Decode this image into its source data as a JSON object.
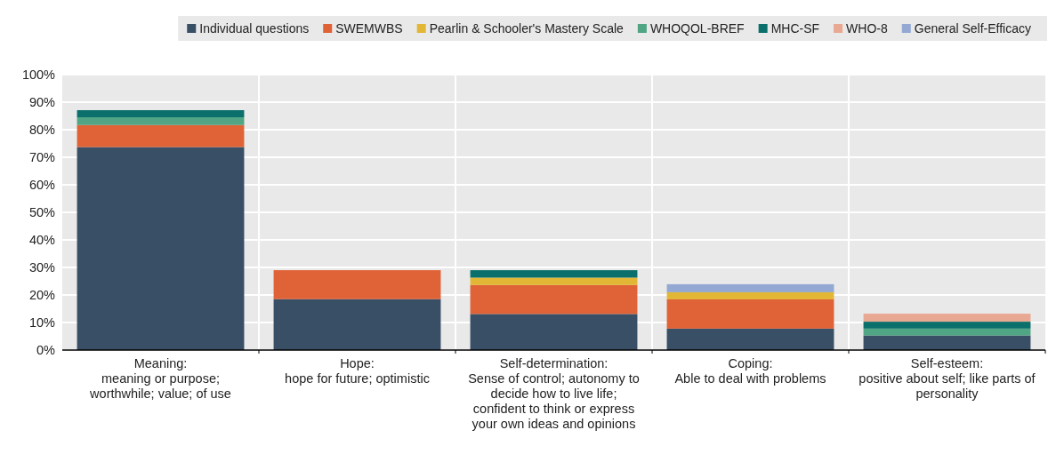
{
  "chart_data": {
    "type": "bar",
    "stacked": true,
    "grid": true,
    "legend": "top",
    "categories": [
      "Meaning:\nmeaning or purpose;\nworthwhile; value; of use",
      "Hope:\nhope for future; optimistic",
      "Self-determination:\nSense of control; autonomy to\ndecide how to live life;\nconfident to think or express\nyour own ideas and opinions",
      "Coping:\nAble to deal with problems",
      "Self-esteem:\npositive about self; like parts of\npersonality"
    ],
    "ylim": [
      0,
      100
    ],
    "yticks": [
      {
        "value": 0,
        "label": "0%"
      },
      {
        "value": 10,
        "label": "10%"
      },
      {
        "value": 20,
        "label": "20%"
      },
      {
        "value": 30,
        "label": "30%"
      },
      {
        "value": 40,
        "label": "40%"
      },
      {
        "value": 50,
        "label": "50%"
      },
      {
        "value": 60,
        "label": "60%"
      },
      {
        "value": 70,
        "label": "70%"
      },
      {
        "value": 80,
        "label": "80%"
      },
      {
        "value": 90,
        "label": "90%"
      },
      {
        "value": 100,
        "label": "100%"
      }
    ],
    "series": [
      {
        "name": "Individual questions",
        "color": "#384f66",
        "values": [
          73.7,
          18.5,
          13.1,
          7.8,
          5.3
        ]
      },
      {
        "name": "SWEMWBS",
        "color": "#e06237",
        "values": [
          8.0,
          10.5,
          10.5,
          10.6,
          null
        ]
      },
      {
        "name": "Pearlin & Schooler's Mastery Scale",
        "color": "#e2b736",
        "values": [
          null,
          null,
          2.7,
          2.6,
          null
        ]
      },
      {
        "name": "WHOQOL-BREF",
        "color": "#4fa584",
        "values": [
          2.8,
          null,
          null,
          null,
          2.5
        ]
      },
      {
        "name": "MHC-SF",
        "color": "#0b6f6c",
        "values": [
          2.6,
          null,
          2.7,
          null,
          2.5
        ]
      },
      {
        "name": "WHO-8",
        "color": "#e9a891",
        "values": [
          null,
          null,
          null,
          null,
          2.9
        ]
      },
      {
        "name": "General Self-Efficacy",
        "color": "#93a8d2",
        "values": [
          null,
          null,
          null,
          2.9,
          null
        ]
      }
    ]
  }
}
